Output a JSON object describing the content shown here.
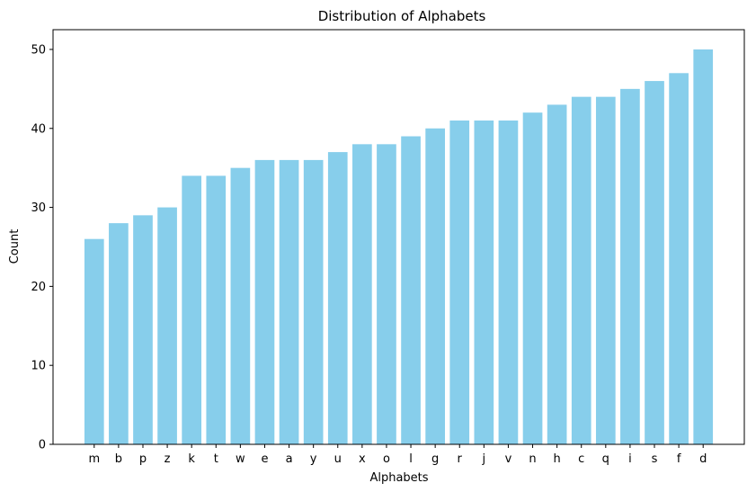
{
  "chart_data": {
    "type": "bar",
    "title": "Distribution of Alphabets",
    "xlabel": "Alphabets",
    "ylabel": "Count",
    "categories": [
      "m",
      "b",
      "p",
      "z",
      "k",
      "t",
      "w",
      "e",
      "a",
      "y",
      "u",
      "x",
      "o",
      "l",
      "g",
      "r",
      "j",
      "v",
      "n",
      "h",
      "c",
      "q",
      "i",
      "s",
      "f",
      "d"
    ],
    "values": [
      26,
      28,
      29,
      30,
      34,
      34,
      35,
      36,
      36,
      36,
      37,
      38,
      38,
      39,
      40,
      41,
      41,
      41,
      42,
      43,
      44,
      44,
      45,
      46,
      47,
      50
    ],
    "ylim": [
      0,
      52.5
    ],
    "yticks": [
      0,
      10,
      20,
      30,
      40,
      50
    ],
    "grid": false,
    "legend": "none",
    "bar_color": "#87CEEB",
    "axis_color": "#000000"
  }
}
